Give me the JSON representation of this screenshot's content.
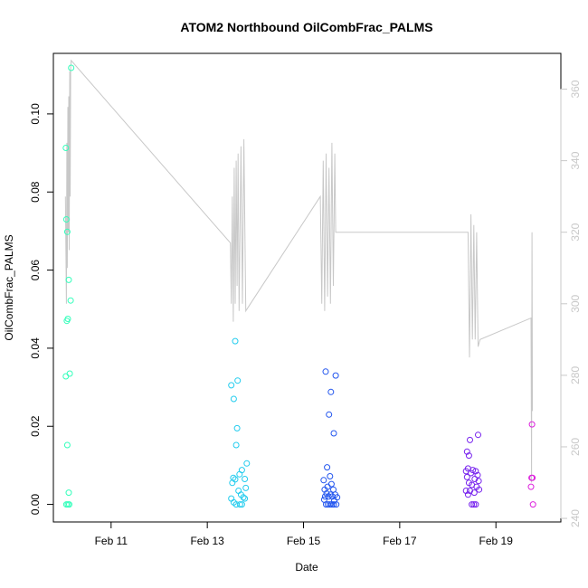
{
  "chart_data": {
    "type": "scatter",
    "title": "ATOM2 Northbound OilCombFrac_PALMS",
    "xlabel": "Date",
    "ylabel": "OilCombFrac_PALMS",
    "x_ticks": [
      "Feb 11",
      "Feb 13",
      "Feb 15",
      "Feb 17",
      "Feb 19"
    ],
    "x_tick_days": [
      11,
      13,
      15,
      17,
      19
    ],
    "xlim": [
      9.8,
      20.35
    ],
    "y_ticks": [
      "0.00",
      "0.02",
      "0.04",
      "0.06",
      "0.08",
      "0.10"
    ],
    "y_tick_values": [
      0,
      0.02,
      0.04,
      0.06,
      0.08,
      0.1
    ],
    "ylim": [
      -0.0045,
      0.1155
    ],
    "y2_ticks": [
      "240",
      "260",
      "280",
      "300",
      "320",
      "340",
      "360"
    ],
    "y2_tick_values": [
      240,
      260,
      280,
      300,
      320,
      340,
      360
    ],
    "y2lim": [
      239,
      370
    ],
    "colors": {
      "frame": "#000000",
      "right_axis": "#c8c8c8",
      "altitude_line": "#c8c8c8"
    },
    "series": [
      {
        "color": "#33ffbb",
        "points": [
          [
            10.06,
            0.0913
          ],
          [
            10.07,
            0.073
          ],
          [
            10.08,
            0.047
          ],
          [
            10.09,
            0.0698
          ],
          [
            10.1,
            0.0475
          ],
          [
            10.12,
            0.0575
          ],
          [
            10.16,
            0.0522
          ],
          [
            10.17,
            0.1118
          ],
          [
            10.14,
            0.0335
          ],
          [
            10.06,
            0.0328
          ],
          [
            10.09,
            0.0152
          ],
          [
            10.12,
            0.003
          ],
          [
            10.07,
            0.0
          ],
          [
            10.1,
            0.0
          ],
          [
            10.13,
            0.0
          ]
        ]
      },
      {
        "color": "#22ccee",
        "points": [
          [
            13.5,
            0.0305
          ],
          [
            13.58,
            0.0418
          ],
          [
            13.55,
            0.027
          ],
          [
            13.63,
            0.0317
          ],
          [
            13.62,
            0.0195
          ],
          [
            13.6,
            0.0152
          ],
          [
            13.82,
            0.0105
          ],
          [
            13.72,
            0.0088
          ],
          [
            13.67,
            0.0077
          ],
          [
            13.78,
            0.0065
          ],
          [
            13.54,
            0.0068
          ],
          [
            13.58,
            0.0064
          ],
          [
            13.52,
            0.0055
          ],
          [
            13.8,
            0.0042
          ],
          [
            13.65,
            0.0035
          ],
          [
            13.7,
            0.0025
          ],
          [
            13.75,
            0.0018
          ],
          [
            13.5,
            0.0015
          ],
          [
            13.78,
            0.0015
          ],
          [
            13.55,
            0.0005
          ],
          [
            13.6,
            0.0
          ],
          [
            13.68,
            0.0
          ],
          [
            13.72,
            0.0
          ]
        ]
      },
      {
        "color": "#2255ee",
        "points": [
          [
            15.46,
            0.034
          ],
          [
            15.57,
            0.0288
          ],
          [
            15.67,
            0.033
          ],
          [
            15.53,
            0.023
          ],
          [
            15.63,
            0.0182
          ],
          [
            15.49,
            0.0095
          ],
          [
            15.55,
            0.0072
          ],
          [
            15.42,
            0.0062
          ],
          [
            15.58,
            0.0052
          ],
          [
            15.5,
            0.0045
          ],
          [
            15.44,
            0.0038
          ],
          [
            15.62,
            0.0038
          ],
          [
            15.48,
            0.0028
          ],
          [
            15.56,
            0.0025
          ],
          [
            15.66,
            0.0025
          ],
          [
            15.45,
            0.002
          ],
          [
            15.52,
            0.002
          ],
          [
            15.6,
            0.002
          ],
          [
            15.7,
            0.0018
          ],
          [
            15.43,
            0.0012
          ],
          [
            15.64,
            0.001
          ],
          [
            15.47,
            0.0
          ],
          [
            15.51,
            0.0
          ],
          [
            15.55,
            0.0
          ],
          [
            15.59,
            0.0
          ],
          [
            15.63,
            0.0
          ],
          [
            15.68,
            0.0
          ]
        ]
      },
      {
        "color": "#7722ee",
        "points": [
          [
            18.4,
            0.0135
          ],
          [
            18.44,
            0.0125
          ],
          [
            18.46,
            0.0165
          ],
          [
            18.63,
            0.0178
          ],
          [
            18.38,
            0.0085
          ],
          [
            18.42,
            0.0092
          ],
          [
            18.48,
            0.008
          ],
          [
            18.52,
            0.0088
          ],
          [
            18.58,
            0.0085
          ],
          [
            18.62,
            0.0075
          ],
          [
            18.4,
            0.007
          ],
          [
            18.56,
            0.0065
          ],
          [
            18.64,
            0.006
          ],
          [
            18.44,
            0.0055
          ],
          [
            18.5,
            0.005
          ],
          [
            18.6,
            0.0045
          ],
          [
            18.38,
            0.0035
          ],
          [
            18.46,
            0.0035
          ],
          [
            18.55,
            0.003
          ],
          [
            18.65,
            0.0038
          ],
          [
            18.42,
            0.0025
          ],
          [
            18.5,
            0.0
          ],
          [
            18.54,
            0.0
          ],
          [
            18.58,
            0.0
          ]
        ]
      },
      {
        "color": "#dd22dd",
        "points": [
          [
            19.75,
            0.0205
          ],
          [
            19.74,
            0.0068
          ],
          [
            19.76,
            0.0068
          ],
          [
            19.73,
            0.0045
          ],
          [
            19.77,
            0.0
          ]
        ]
      }
    ],
    "altitude": [
      [
        10.05,
        330
      ],
      [
        10.07,
        300
      ],
      [
        10.08,
        345
      ],
      [
        10.09,
        310
      ],
      [
        10.1,
        355
      ],
      [
        10.11,
        320
      ],
      [
        10.12,
        358
      ],
      [
        10.13,
        315
      ],
      [
        10.14,
        365
      ],
      [
        10.15,
        330
      ],
      [
        10.16,
        366
      ],
      [
        10.17,
        368
      ],
      [
        13.48,
        317
      ],
      [
        13.5,
        300
      ],
      [
        13.52,
        330
      ],
      [
        13.54,
        295
      ],
      [
        13.56,
        338
      ],
      [
        13.58,
        300
      ],
      [
        13.6,
        340
      ],
      [
        13.62,
        305
      ],
      [
        13.64,
        342
      ],
      [
        13.66,
        298
      ],
      [
        13.7,
        344
      ],
      [
        13.73,
        300
      ],
      [
        13.76,
        346
      ],
      [
        13.8,
        298
      ],
      [
        15.35,
        330
      ],
      [
        15.38,
        300
      ],
      [
        15.41,
        340
      ],
      [
        15.44,
        298
      ],
      [
        15.47,
        342
      ],
      [
        15.5,
        302
      ],
      [
        15.53,
        338
      ],
      [
        15.56,
        300
      ],
      [
        15.59,
        345
      ],
      [
        15.62,
        305
      ],
      [
        15.65,
        342
      ],
      [
        15.67,
        320
      ],
      [
        18.42,
        320
      ],
      [
        18.45,
        285
      ],
      [
        18.48,
        325
      ],
      [
        18.51,
        290
      ],
      [
        18.54,
        322
      ],
      [
        18.57,
        290
      ],
      [
        18.6,
        320
      ],
      [
        18.63,
        288
      ],
      [
        18.67,
        290
      ],
      [
        19.73,
        296
      ],
      [
        19.74,
        250
      ],
      [
        19.75,
        320
      ],
      [
        19.76,
        270
      ]
    ]
  }
}
